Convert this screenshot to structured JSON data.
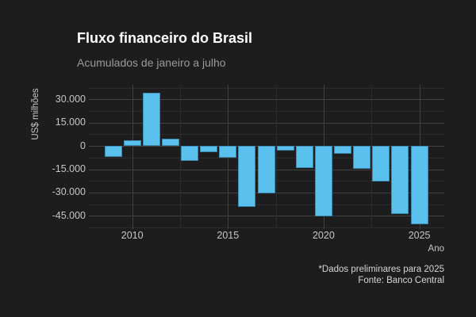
{
  "header": {
    "title": "Fluxo financeiro do Brasil",
    "subtitle": "Acumulados de janeiro a julho"
  },
  "caption": {
    "line1": "*Dados preliminares para 2025",
    "line2": "Fonte: Banco Central"
  },
  "colors": {
    "background": "#1d1d1d",
    "bar_fill": "#5ac1ee",
    "bar_border": "#3c89af",
    "title_text": "#ffffff",
    "subtitle_text": "#9a9a9a",
    "axis_text": "#c6c6c6",
    "caption_text": "#d6d6d6",
    "grid_major": "#414141",
    "grid_minor": "#2c2c2c"
  },
  "chart_data": {
    "type": "bar",
    "title": "Fluxo financeiro do Brasil",
    "subtitle": "Acumulados de janeiro a julho",
    "xlabel": "Ano",
    "ylabel": "US$ milhões",
    "categories": [
      2009,
      2010,
      2011,
      2012,
      2013,
      2014,
      2015,
      2016,
      2017,
      2018,
      2019,
      2020,
      2021,
      2022,
      2023,
      2024,
      2025
    ],
    "values": [
      -7000,
      3700,
      34000,
      4400,
      -9500,
      -4200,
      -7700,
      -39300,
      -30500,
      -3100,
      -14000,
      -45500,
      -5000,
      -14600,
      -23100,
      -43900,
      -50200
    ],
    "ylim": [
      -53500,
      39300
    ],
    "y_ticks": [
      {
        "value": 30000,
        "label": "30.000"
      },
      {
        "value": 15000,
        "label": "15.000"
      },
      {
        "value": 0,
        "label": "0"
      },
      {
        "value": -15000,
        "label": "-15.000"
      },
      {
        "value": -30000,
        "label": "-30.000"
      },
      {
        "value": -45000,
        "label": "-45.000"
      }
    ],
    "y_minor_step": 7500,
    "y_major_step": 15000,
    "x_ticks": [
      {
        "value": 2010,
        "label": "2010"
      },
      {
        "value": 2015,
        "label": "2015"
      },
      {
        "value": 2020,
        "label": "2020"
      },
      {
        "value": 2025,
        "label": "2025"
      }
    ],
    "grid": true,
    "legend": "none",
    "bar_color": "#5ac1ee"
  }
}
